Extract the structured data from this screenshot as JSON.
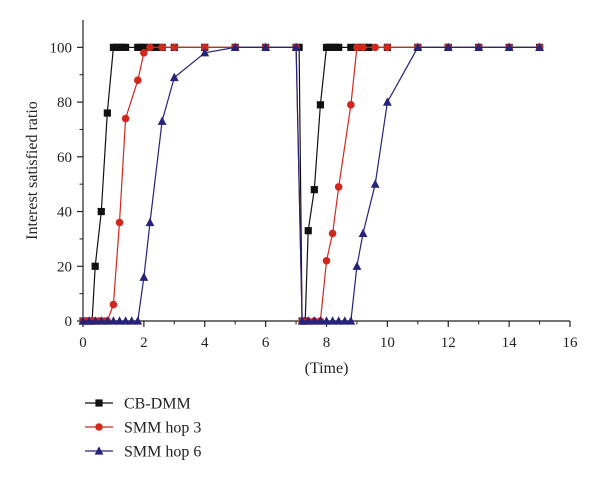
{
  "chart_data": {
    "type": "line",
    "xlabel": "(Time)",
    "ylabel": "Interest satisfied ratio",
    "xlim": [
      0,
      16
    ],
    "ylim": [
      0,
      110
    ],
    "xticks": [
      "0",
      "2",
      "4",
      "6",
      "8",
      "10",
      "12",
      "14",
      "16"
    ],
    "yticks": [
      "0",
      "20",
      "40",
      "60",
      "80",
      "100"
    ],
    "grid": false,
    "legend_position": "bottom-left",
    "series": [
      {
        "name": "CB-DMM",
        "color": "#111111",
        "marker": "square",
        "x": [
          0.0,
          0.1,
          0.2,
          0.3,
          0.4,
          0.6,
          0.8,
          1.0,
          1.1,
          1.2,
          1.3,
          1.4,
          1.8,
          1.9,
          2.0,
          2.2,
          2.4,
          2.6,
          3.0,
          4.0,
          5.0,
          6.0,
          7.0,
          7.1,
          7.2,
          7.3,
          7.4,
          7.6,
          7.8,
          8.0,
          8.1,
          8.2,
          8.3,
          8.4,
          8.8,
          9.0,
          9.2,
          9.4,
          10.0,
          11.0,
          12.0,
          13.0,
          14.0,
          15.0
        ],
        "y": [
          0,
          0,
          0,
          0,
          20,
          40,
          76,
          100,
          100,
          100,
          100,
          100,
          100,
          100,
          100,
          100,
          100,
          100,
          100,
          100,
          100,
          100,
          100,
          100,
          0,
          0,
          33,
          48,
          79,
          100,
          100,
          100,
          100,
          100,
          100,
          100,
          100,
          100,
          100,
          100,
          100,
          100,
          100,
          100
        ]
      },
      {
        "name": "SMM hop 3",
        "color": "#d0281e",
        "marker": "circle",
        "x": [
          0.0,
          0.1,
          0.2,
          0.3,
          0.4,
          0.5,
          0.6,
          0.7,
          0.8,
          1.0,
          1.2,
          1.4,
          1.8,
          2.0,
          2.2,
          2.6,
          3.0,
          4.0,
          5.0,
          6.0,
          7.0,
          7.2,
          7.4,
          7.6,
          7.8,
          8.0,
          8.2,
          8.4,
          8.8,
          9.0,
          9.2,
          9.6,
          10.0,
          11.0,
          12.0,
          13.0,
          14.0,
          15.0
        ],
        "y": [
          0,
          0,
          0,
          0,
          0,
          0,
          0,
          0,
          0,
          6,
          36,
          74,
          88,
          98,
          100,
          100,
          100,
          100,
          100,
          100,
          100,
          0,
          0,
          0,
          0,
          22,
          32,
          49,
          79,
          100,
          100,
          100,
          100,
          100,
          100,
          100,
          100,
          100
        ]
      },
      {
        "name": "SMM hop 6",
        "color": "#26237a",
        "marker": "triangle",
        "x": [
          0.0,
          0.2,
          0.4,
          0.6,
          0.8,
          1.0,
          1.2,
          1.4,
          1.6,
          1.8,
          2.0,
          2.2,
          2.6,
          3.0,
          4.0,
          5.0,
          6.0,
          7.0,
          7.2,
          7.4,
          7.6,
          7.8,
          8.0,
          8.2,
          8.4,
          8.6,
          8.8,
          9.0,
          9.2,
          9.6,
          10.0,
          11.0,
          12.0,
          13.0,
          14.0,
          15.0
        ],
        "y": [
          0,
          0,
          0,
          0,
          0,
          0,
          0,
          0,
          0,
          0,
          16,
          36,
          73,
          89,
          98,
          100,
          100,
          100,
          0,
          0,
          0,
          0,
          0,
          0,
          0,
          0,
          0,
          20,
          32,
          50,
          80,
          100,
          100,
          100,
          100,
          100
        ]
      }
    ]
  }
}
